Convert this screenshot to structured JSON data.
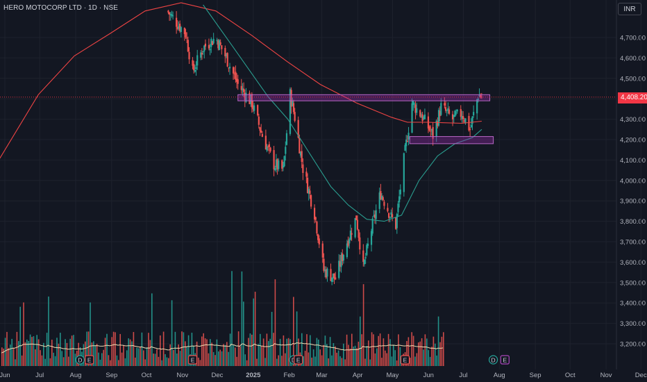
{
  "header": {
    "symbol_title": "HERO MOTOCORP LTD · 1D · NSE",
    "currency": "INR"
  },
  "last_price_label": "4,408.20",
  "colors": {
    "background": "#131722",
    "up": "#26a69a",
    "down": "#ef5350",
    "ma_long": "#ef4444",
    "ma_short": "#2a9d8f",
    "zone": "#9c27b0",
    "volume_ma": "#f5deb3",
    "grid": "#1e222d",
    "axis_text": "#b2b5be"
  },
  "chart_data": {
    "type": "candlestick",
    "title": "HERO MOTOCORP LTD · 1D · NSE",
    "y_ticks": [
      "3,200.00",
      "3,300.00",
      "3,400.00",
      "3,500.00",
      "3,600.00",
      "3,700.00",
      "3,800.00",
      "3,900.00",
      "4,000.00",
      "4,100.00",
      "4,200.00",
      "4,300.00",
      "4,400.00",
      "4,500.00",
      "4,600.00",
      "4,700.00"
    ],
    "ylim": [
      3150,
      4830
    ],
    "x_ticks": [
      "Jun",
      "Jul",
      "Aug",
      "Sep",
      "Oct",
      "Nov",
      "Dec",
      "2025",
      "Feb",
      "Mar",
      "Apr",
      "May",
      "Jun",
      "Jul",
      "Aug",
      "Sep",
      "Oct",
      "Nov",
      "Dec"
    ],
    "last_price": 4408.2,
    "price_path": [
      [
        "2024-10-20",
        4830
      ],
      [
        "2024-11-05",
        4720
      ],
      [
        "2024-11-11",
        4530
      ],
      [
        "2024-11-20",
        4650
      ],
      [
        "2024-12-01",
        4700
      ],
      [
        "2024-12-10",
        4600
      ],
      [
        "2024-12-20",
        4470
      ],
      [
        "2025-01-01",
        4380
      ],
      [
        "2025-01-10",
        4220
      ],
      [
        "2025-01-20",
        4080
      ],
      [
        "2025-01-28",
        4050
      ],
      [
        "2025-02-03",
        4420
      ],
      [
        "2025-02-07",
        4310
      ],
      [
        "2025-02-14",
        4060
      ],
      [
        "2025-02-24",
        3840
      ],
      [
        "2025-03-04",
        3560
      ],
      [
        "2025-03-14",
        3520
      ],
      [
        "2025-03-24",
        3700
      ],
      [
        "2025-04-01",
        3820
      ],
      [
        "2025-04-07",
        3570
      ],
      [
        "2025-04-14",
        3760
      ],
      [
        "2025-04-22",
        3940
      ],
      [
        "2025-05-01",
        3820
      ],
      [
        "2025-05-05",
        3780
      ],
      [
        "2025-05-12",
        4100
      ],
      [
        "2025-05-19",
        4380
      ],
      [
        "2025-05-27",
        4320
      ],
      [
        "2025-06-06",
        4220
      ],
      [
        "2025-06-13",
        4360
      ],
      [
        "2025-06-23",
        4300
      ],
      [
        "2025-07-01",
        4330
      ],
      [
        "2025-07-08",
        4250
      ],
      [
        "2025-07-15",
        4420
      ],
      [
        "2025-07-18",
        4408
      ]
    ],
    "ma_long": [
      [
        "2024-05-28",
        4100
      ],
      [
        "2024-07-01",
        4420
      ],
      [
        "2024-08-01",
        4610
      ],
      [
        "2024-09-01",
        4720
      ],
      [
        "2024-10-01",
        4830
      ],
      [
        "2024-11-01",
        4870
      ],
      [
        "2024-12-01",
        4830
      ],
      [
        "2025-01-01",
        4710
      ],
      [
        "2025-02-01",
        4580
      ],
      [
        "2025-03-01",
        4470
      ],
      [
        "2025-04-01",
        4380
      ],
      [
        "2025-05-01",
        4310
      ],
      [
        "2025-05-15",
        4285
      ],
      [
        "2025-06-01",
        4285
      ],
      [
        "2025-07-01",
        4280
      ],
      [
        "2025-07-18",
        4290
      ]
    ],
    "ma_short": [
      [
        "2024-11-20",
        4860
      ],
      [
        "2024-12-15",
        4660
      ],
      [
        "2025-01-15",
        4410
      ],
      [
        "2025-02-01",
        4300
      ],
      [
        "2025-02-20",
        4130
      ],
      [
        "2025-03-10",
        3970
      ],
      [
        "2025-03-25",
        3880
      ],
      [
        "2025-04-10",
        3810
      ],
      [
        "2025-04-25",
        3800
      ],
      [
        "2025-05-10",
        3830
      ],
      [
        "2025-05-25",
        4000
      ],
      [
        "2025-06-10",
        4120
      ],
      [
        "2025-06-25",
        4180
      ],
      [
        "2025-07-10",
        4210
      ],
      [
        "2025-07-18",
        4250
      ]
    ],
    "zones": [
      {
        "from": "2024-12-20",
        "to": "2025-07-25",
        "low": 4390,
        "high": 4420
      },
      {
        "from": "2025-05-17",
        "to": "2025-07-28",
        "low": 4180,
        "high": 4215
      }
    ],
    "events": [
      {
        "date": "2024-08-06",
        "label": "D",
        "kind": "dividend"
      },
      {
        "date": "2024-08-14",
        "label": "E",
        "kind": "earnings"
      },
      {
        "date": "2024-11-11",
        "label": "E",
        "kind": "earnings"
      },
      {
        "date": "2025-02-06",
        "label": "D",
        "kind": "dividend"
      },
      {
        "date": "2025-02-10",
        "label": "E",
        "kind": "earnings"
      },
      {
        "date": "2025-05-13",
        "label": "E",
        "kind": "earnings"
      },
      {
        "date": "2025-07-28",
        "label": "D",
        "kind": "dividend"
      },
      {
        "date": "2025-08-07",
        "label": "E",
        "kind": "earnings"
      }
    ]
  }
}
